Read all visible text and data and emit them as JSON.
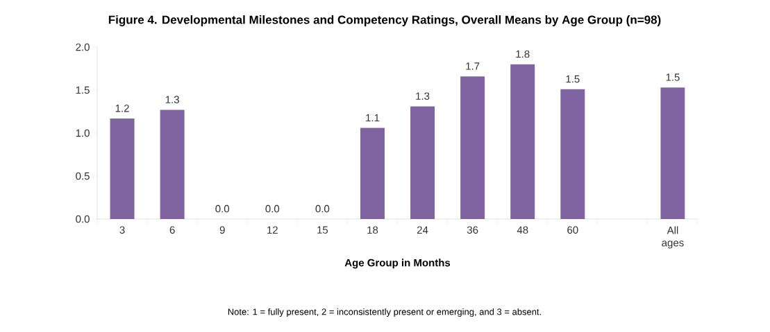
{
  "chart_data": {
    "type": "bar",
    "title": "Figure 4.  Developmental Milestones and Competency Ratings, Overall Means by Age Group (n=98)",
    "xlabel": "Age Group in Months",
    "categories": [
      "3",
      "6",
      "9",
      "12",
      "15",
      "18",
      "24",
      "36",
      "48",
      "60",
      null,
      "All ages"
    ],
    "values": [
      1.17,
      1.27,
      0,
      0,
      0,
      1.06,
      1.31,
      1.66,
      1.8,
      1.51,
      null,
      1.53
    ],
    "value_labels": [
      "1.2",
      "1.3",
      "0.0",
      "0.0",
      "0.0",
      "1.1",
      "1.3",
      "1.7",
      "1.8",
      "1.5",
      null,
      "1.5"
    ],
    "color": "#8064a2",
    "ylim": [
      0,
      2
    ],
    "yticks": [
      {
        "value": 0,
        "label": "0.0"
      },
      {
        "value": 0.5,
        "label": "0.5"
      },
      {
        "value": 1,
        "label": "1.0"
      },
      {
        "value": 1.5,
        "label": "1.5"
      },
      {
        "value": 2,
        "label": "2.0"
      }
    ],
    "annotations": [
      "Note: 1 = fully present, 2 = inconsistently present or emerging, and 3 = absent."
    ]
  }
}
